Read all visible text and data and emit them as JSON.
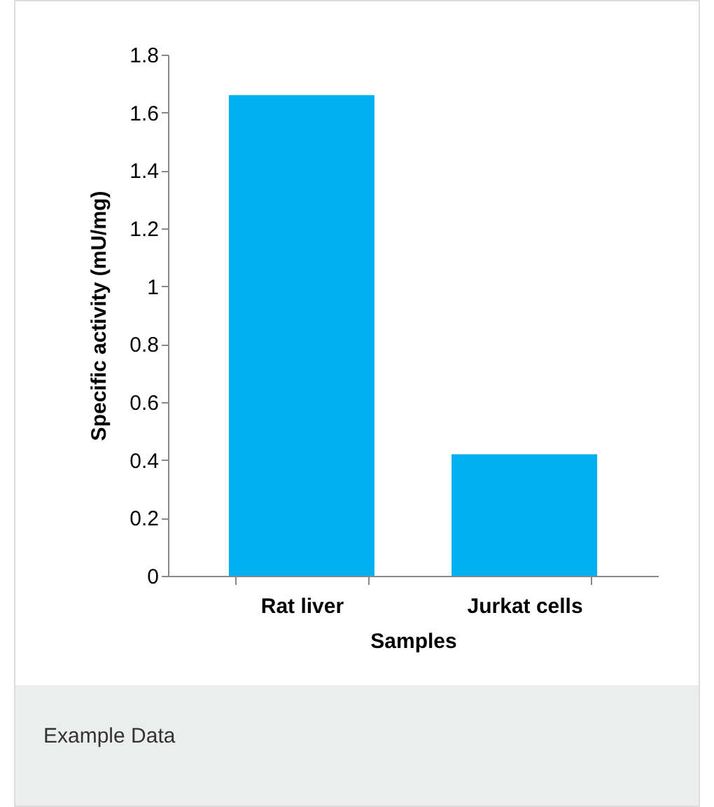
{
  "chart_data": {
    "type": "bar",
    "xlabel": "Samples",
    "ylabel": "Specific activity (mU/mg)",
    "categories": [
      "Rat liver",
      "Jurkat cells"
    ],
    "values": [
      1.66,
      0.42
    ],
    "color": "#00b0f0",
    "ylim": [
      0,
      1.8
    ],
    "yticks": [
      0,
      0.2,
      0.4,
      0.6,
      0.8,
      1,
      1.2,
      1.4,
      1.6,
      1.8
    ],
    "grid": false,
    "annotations": [
      "Example Data"
    ]
  }
}
